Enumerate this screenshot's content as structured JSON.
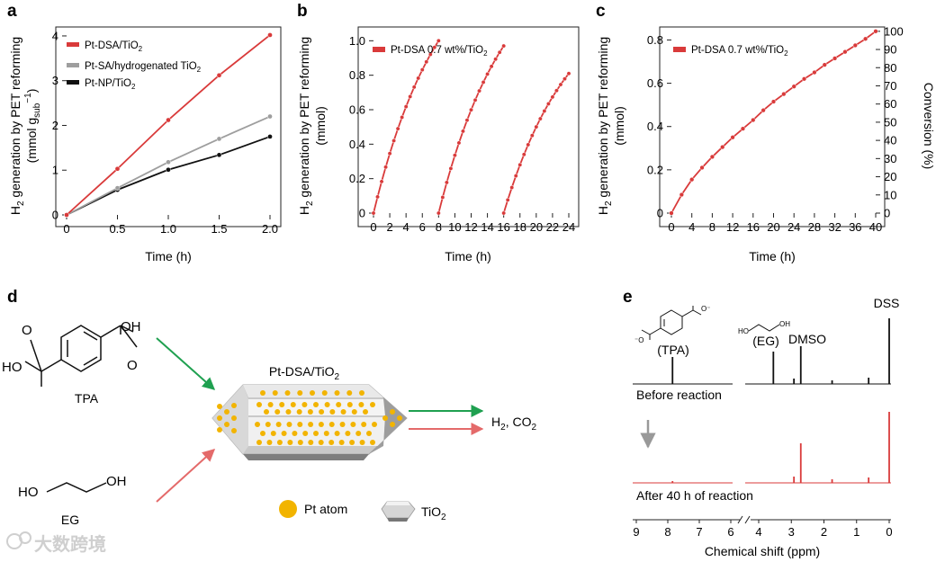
{
  "panels": {
    "a": "a",
    "b": "b",
    "c": "c",
    "d": "d",
    "e": "e"
  },
  "chart_data": [
    {
      "id": "a",
      "type": "line",
      "ylabel_line1": "H",
      "ylabel_line1_sub": "2",
      "ylabel_line1_rest": " generation by PET reforming",
      "ylabel_line2": "(mmol g",
      "ylabel_line2_sub": "sub",
      "ylabel_line2_sup": "−1",
      "ylabel_line2_rest": ")",
      "xlabel": "Time (h)",
      "xlim": [
        0,
        2.0
      ],
      "ylim": [
        0,
        4.2
      ],
      "xticks": [
        "0",
        "0.5",
        "1.0",
        "1.5",
        "2.0"
      ],
      "xtick_values": [
        0,
        0.5,
        1.0,
        1.5,
        2.0
      ],
      "yticks": [
        "0",
        "1",
        "2",
        "3",
        "4"
      ],
      "ytick_values": [
        0,
        1,
        2,
        3,
        4
      ],
      "series": [
        {
          "name": "Pt-DSA/TiO",
          "name_sub": "2",
          "color": "#d93a3a",
          "x": [
            0,
            0.5,
            1.0,
            1.5,
            2.0
          ],
          "y": [
            0,
            1.03,
            2.12,
            3.12,
            4.02
          ]
        },
        {
          "name": "Pt-SA/hydrogenated TiO",
          "name_sub": "2",
          "color": "#9e9e9e",
          "x": [
            0,
            0.5,
            1.0,
            1.5,
            2.0
          ],
          "y": [
            0,
            0.6,
            1.18,
            1.7,
            2.2
          ]
        },
        {
          "name": "Pt-NP/TiO",
          "name_sub": "2",
          "color": "#111111",
          "x": [
            0,
            0.5,
            1.0,
            1.5,
            2.0
          ],
          "y": [
            0,
            0.56,
            1.01,
            1.34,
            1.75
          ]
        }
      ]
    },
    {
      "id": "b",
      "type": "line",
      "ylabel_line1": "H",
      "ylabel_line1_sub": "2",
      "ylabel_line1_rest": " generation by PET reforming",
      "ylabel_line2": "(mmol)",
      "xlabel": "Time (h)",
      "xlim": [
        0,
        24
      ],
      "ylim": [
        0,
        1.08
      ],
      "xticks": [
        "0",
        "2",
        "4",
        "6",
        "8",
        "10",
        "12",
        "14",
        "16",
        "18",
        "20",
        "22",
        "24"
      ],
      "xtick_values": [
        0,
        2,
        4,
        6,
        8,
        10,
        12,
        14,
        16,
        18,
        20,
        22,
        24
      ],
      "yticks": [
        "0",
        "0.2",
        "0.4",
        "0.6",
        "0.8",
        "1.0"
      ],
      "ytick_values": [
        0,
        0.2,
        0.4,
        0.6,
        0.8,
        1.0
      ],
      "series": [
        {
          "name": "Pt-DSA 0.7 wt%/TiO",
          "name_sub": "2",
          "color": "#d93a3a",
          "segments": [
            {
              "start": 0,
              "end": 8,
              "step": 0.5,
              "ymax": 1.0,
              "k": 0.12
            },
            {
              "start": 8,
              "end": 16,
              "step": 0.5,
              "ymax": 0.97,
              "k": 0.12
            },
            {
              "start": 16,
              "end": 24,
              "step": 0.5,
              "ymax": 0.81,
              "k": 0.12
            }
          ]
        }
      ]
    },
    {
      "id": "c",
      "type": "line",
      "ylabel_line1": "H",
      "ylabel_line1_sub": "2",
      "ylabel_line1_rest": " generation by PET reforming",
      "ylabel_line2": "(mmol)",
      "y2label": "Conversion (%)",
      "xlabel": "Time (h)",
      "xlim": [
        0,
        40
      ],
      "ylim": [
        0,
        0.86
      ],
      "y2lim": [
        0,
        100
      ],
      "xticks": [
        "0",
        "4",
        "8",
        "12",
        "16",
        "20",
        "24",
        "28",
        "32",
        "36",
        "40"
      ],
      "xtick_values": [
        0,
        4,
        8,
        12,
        16,
        20,
        24,
        28,
        32,
        36,
        40
      ],
      "yticks": [
        "0",
        "0.2",
        "0.4",
        "0.6",
        "0.8"
      ],
      "ytick_values": [
        0,
        0.2,
        0.4,
        0.6,
        0.8
      ],
      "y2ticks": [
        "0",
        "10",
        "20",
        "30",
        "40",
        "50",
        "60",
        "70",
        "80",
        "90",
        "100"
      ],
      "y2tick_values": [
        0,
        10,
        20,
        30,
        40,
        50,
        60,
        70,
        80,
        90,
        100
      ],
      "series": [
        {
          "name": "Pt-DSA 0.7 wt%/TiO",
          "name_sub": "2",
          "color": "#d93a3a",
          "x": [
            0,
            2,
            4,
            6,
            8,
            10,
            12,
            14,
            16,
            18,
            20,
            22,
            24,
            26,
            28,
            30,
            32,
            34,
            36,
            38,
            40
          ],
          "y": [
            0,
            0.085,
            0.155,
            0.21,
            0.26,
            0.305,
            0.35,
            0.39,
            0.43,
            0.475,
            0.515,
            0.55,
            0.585,
            0.62,
            0.65,
            0.685,
            0.715,
            0.745,
            0.775,
            0.805,
            0.84
          ]
        }
      ]
    }
  ],
  "panel_d": {
    "tpa_label": "TPA",
    "eg_label": "EG",
    "oh": "OH",
    "ho": "HO",
    "catalyst_title": "Pt-DSA/TiO",
    "catalyst_title_sub": "2",
    "products_main": "H",
    "products_sub1": "2",
    "products_mid": ", CO",
    "products_sub2": "2",
    "legend_pt": "Pt atom",
    "legend_tio2": "TiO",
    "legend_tio2_sub": "2",
    "colors": {
      "green": "#1fa050",
      "red": "#e46a6a",
      "pt": "#f2b400"
    }
  },
  "panel_e": {
    "tpa_label": "(TPA)",
    "eg_label": "(EG)",
    "dmso_label": "DMSO",
    "dss_label": "DSS",
    "before_label": "Before reaction",
    "after_label": "After 40 h of reaction",
    "xlabel": "Chemical shift (ppm)",
    "xticks_left": [
      "9",
      "8",
      "7",
      "6"
    ],
    "xticks_right": [
      "4",
      "3",
      "2",
      "1",
      "0"
    ],
    "peaks_ppm": {
      "tpa": 7.85,
      "eg": 3.55,
      "dmso": 2.71,
      "small1": 2.92,
      "small2": 1.75,
      "small3": 0.63,
      "dss": 0.0
    }
  },
  "watermark": "大数跨境"
}
